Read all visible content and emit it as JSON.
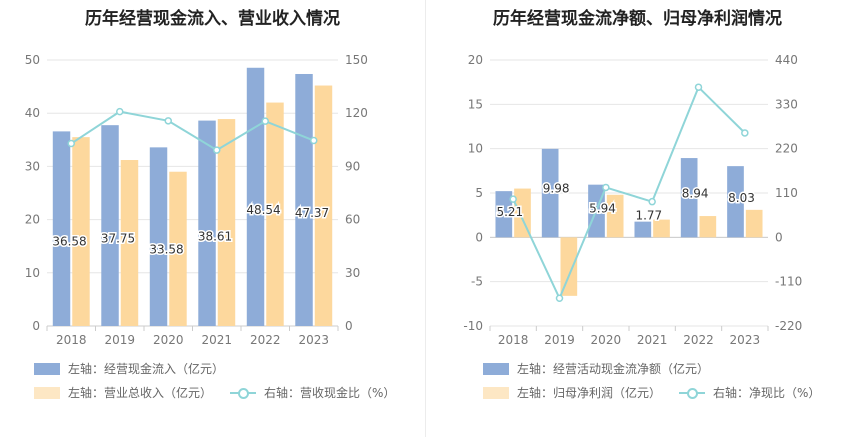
{
  "colors": {
    "bar_a": "#8eacd8",
    "bar_b": "#fdd89d",
    "line": "#8fd5d8",
    "grid": "#e6e6e6",
    "axis_text": "#777777",
    "label_text": "#333333"
  },
  "chart_data": [
    {
      "type": "bar",
      "title": "历年经营现金流入、营业收入情况",
      "categories": [
        "2018",
        "2019",
        "2020",
        "2021",
        "2022",
        "2023"
      ],
      "y_left": {
        "min": 0,
        "max": 50,
        "ticks": [
          "0",
          "10",
          "20",
          "30",
          "40",
          "50"
        ]
      },
      "y_right": {
        "min": 0,
        "max": 150,
        "ticks": [
          "0",
          "30",
          "60",
          "90",
          "120",
          "150"
        ]
      },
      "series": [
        {
          "name": "左轴：经营现金流入（亿元）",
          "axis": "left",
          "kind": "bar",
          "values": [
            36.58,
            37.75,
            33.58,
            38.61,
            48.54,
            47.37
          ],
          "labels": [
            "36.58",
            "37.75",
            "33.58",
            "38.61",
            "48.54",
            "47.37"
          ]
        },
        {
          "name": "左轴：营业总收入（亿元）",
          "axis": "left",
          "kind": "bar",
          "values": [
            35.5,
            31.2,
            29.0,
            38.9,
            42.0,
            45.2
          ]
        },
        {
          "name": "右轴：营收现金比（%）",
          "axis": "right",
          "kind": "line",
          "values": [
            102.9,
            120.9,
            115.7,
            99.2,
            115.5,
            104.6
          ]
        }
      ],
      "legend": "bottom"
    },
    {
      "type": "bar",
      "title": "历年经营现金流净额、归母净利润情况",
      "categories": [
        "2018",
        "2019",
        "2020",
        "2021",
        "2022",
        "2023"
      ],
      "y_left": {
        "min": -10,
        "max": 20,
        "ticks": [
          "-10",
          "-5",
          "0",
          "5",
          "10",
          "15",
          "20"
        ]
      },
      "y_right": {
        "min": -220,
        "max": 440,
        "ticks": [
          "-220",
          "-110",
          "0",
          "110",
          "220",
          "330",
          "440"
        ]
      },
      "series": [
        {
          "name": "左轴：经营活动现金流净额（亿元）",
          "axis": "left",
          "kind": "bar",
          "values": [
            5.21,
            9.98,
            5.94,
            1.77,
            8.94,
            8.03
          ],
          "labels": [
            "5.21",
            "9.98",
            "5.94",
            "1.77",
            "8.94",
            "8.03"
          ]
        },
        {
          "name": "左轴：归母净利润（亿元）",
          "axis": "left",
          "kind": "bar",
          "values": [
            5.5,
            -6.6,
            4.8,
            2.0,
            2.4,
            3.1
          ]
        },
        {
          "name": "右轴：净现比（%）",
          "axis": "right",
          "kind": "line",
          "values": [
            94.7,
            -151.2,
            123.8,
            88.5,
            372.5,
            259.0
          ]
        }
      ],
      "legend": "bottom"
    }
  ]
}
